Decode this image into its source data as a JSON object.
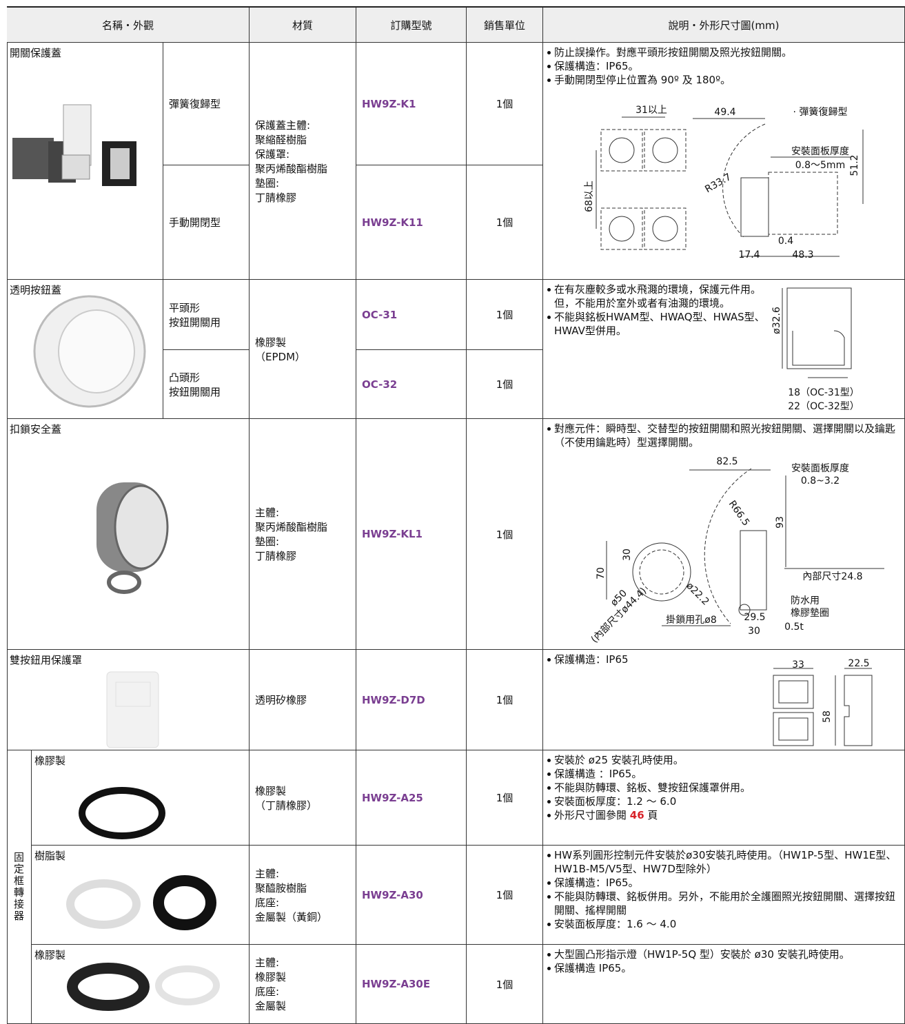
{
  "header": {
    "name": "名稱・外觀",
    "material": "材質",
    "part_no": "訂購型號",
    "unit": "銷售單位",
    "description": "說明・外形尺寸圖(mm)"
  },
  "rows": [
    {
      "name": "開關保護蓋",
      "variants": [
        {
          "name": "彈簧復歸型",
          "part_no": "HW9Z-K1",
          "unit": "1個"
        },
        {
          "name": "手動開閉型",
          "part_no": "HW9Z-K11",
          "unit": "1個"
        }
      ],
      "material": [
        "保護蓋主體:",
        "聚縮醛樹脂",
        "保護罩:",
        "聚丙烯酸酯樹脂",
        "墊圈:",
        "丁腈橡膠"
      ],
      "description": [
        "防止誤操作。對應平頭形按鈕開關及照光按鈕開關。",
        "保護構造：IP65。",
        "手動開閉型停止位置為 90º 及 180º。"
      ],
      "diagram": [
        "31以上",
        "49.4",
        "· 彈簧復歸型",
        "安裝面板厚度",
        "0.8〜5mm",
        "51.2",
        "R33.7",
        "68以上",
        "0.4",
        "17.4",
        "48.3"
      ]
    },
    {
      "name": "透明按鈕蓋",
      "variants": [
        {
          "name": [
            "平頭形",
            "按鈕開關用"
          ],
          "part_no": "OC-31",
          "unit": "1個"
        },
        {
          "name": [
            "凸頭形",
            "按鈕開關用"
          ],
          "part_no": "OC-32",
          "unit": "1個"
        }
      ],
      "material": [
        "橡膠製",
        "（EPDM）"
      ],
      "description": [
        "在有灰塵較多或水飛濺的環境，保護元件用。但，不能用於室外或者有油濺的環境。",
        "不能與銘板HWAM型、HWAQ型、HWAS型、HWAV型併用。"
      ],
      "diagram": [
        "ø32.6",
        "18（OC-31型）",
        "22（OC-32型）"
      ]
    },
    {
      "name": "扣鎖安全蓋",
      "part_no": "HW9Z-KL1",
      "unit": "1個",
      "material": [
        "主體:",
        "聚丙烯酸酯樹脂",
        "墊圈:",
        "丁腈橡膠"
      ],
      "description": [
        "對應元件：瞬時型、交替型的按鈕開關和照光按鈕開關、選擇開關以及鑰匙（不使用鑰匙時）型選擇開關。"
      ],
      "diagram": [
        "82.5",
        "安裝面板厚度",
        "0.8~3.2",
        "R66.5",
        "93",
        "30",
        "70",
        "內部尺寸24.8",
        "ø22.2",
        "ø50",
        "(內部尺寸ø44.4)",
        "防水用",
        "橡膠墊圈",
        "0.5t",
        "29.5",
        "掛鎖用孔ø8",
        "30"
      ]
    },
    {
      "name": "雙按鈕用保護罩",
      "part_no": "HW9Z-D7D",
      "unit": "1個",
      "material": [
        "透明矽橡膠"
      ],
      "description": [
        "保護構造：IP65"
      ],
      "diagram": [
        "33",
        "22.5",
        "58"
      ]
    }
  ],
  "adapters": {
    "label": "固定框轉接器",
    "items": [
      {
        "name": "橡膠製",
        "material": [
          "橡膠製",
          "（丁腈橡膠）"
        ],
        "part_no": "HW9Z-A25",
        "unit": "1個",
        "description": [
          "安裝於 ø25 安裝孔時使用。",
          "保護構造 ：IP65。",
          "不能與防轉環、銘板、雙按鈕保護罩併用。",
          "安裝面板厚度：1.2 ～ 6.0",
          [
            "外形尺寸圖參閱 ",
            "46",
            " 頁"
          ]
        ]
      },
      {
        "name": "樹脂製",
        "material": [
          "主體:",
          "聚醯胺樹脂",
          "底座:",
          "金屬製（黃銅）"
        ],
        "part_no": "HW9Z-A30",
        "unit": "1個",
        "description": [
          "HW系列圓形控制元件安裝於ø30安裝孔時使用。（HW1P-5型、HW1E型、HW1B-M5/V5型、HW7D型除外）",
          "保護構造：IP65。",
          "不能與防轉環、銘板併用。另外，不能用於全護圈照光按鈕開關、選擇按鈕開關、搖桿開關",
          "安裝面板厚度：1.6 ～ 4.0"
        ]
      },
      {
        "name": "橡膠製",
        "material": [
          "主體:",
          "橡膠製",
          "底座:",
          "金屬製"
        ],
        "part_no": "HW9Z-A30E",
        "unit": "1個",
        "description": [
          "大型圓凸形指示燈（HW1P-5Q 型）安裝於 ø30 安裝孔時使用。",
          "保護構造 IP65。"
        ]
      }
    ]
  }
}
